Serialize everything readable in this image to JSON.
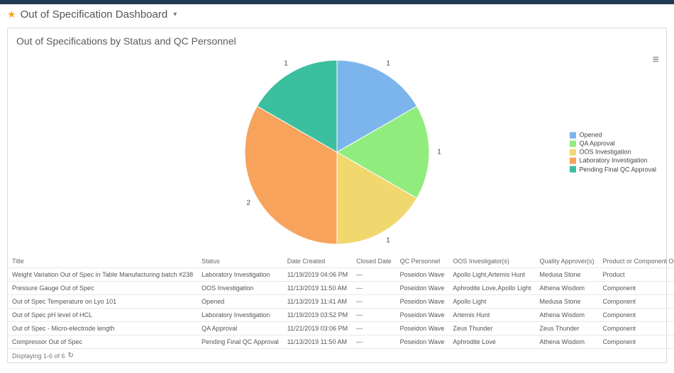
{
  "header": {
    "title": "Out of Specification Dashboard"
  },
  "panel": {
    "title": "Out of Specifications by Status and QC Personnel"
  },
  "chart": {
    "type": "pie",
    "background_color": "#ffffff",
    "radius": 130,
    "label_fontsize": 10,
    "slices": [
      {
        "label": "Opened",
        "value": 1,
        "color": "#7cb5ec"
      },
      {
        "label": "QA Approval",
        "value": 1,
        "color": "#90ed7d"
      },
      {
        "label": "OOS Investigation",
        "value": 1,
        "color": "#f0d86e"
      },
      {
        "label": "Laboratory Investigation",
        "value": 2,
        "color": "#f7a35c"
      },
      {
        "label": "Pending Final QC Approval",
        "value": 1,
        "color": "#3bbf9e"
      }
    ],
    "legend": {
      "position": "right",
      "fontsize": 9
    }
  },
  "table": {
    "columns": [
      "Title",
      "Status",
      "Date Created",
      "Closed Date",
      "QC Personnel",
      "OOS Investigator(s)",
      "Quality Approver(s)",
      "Product or Component Out of Spec?"
    ],
    "rows": [
      [
        "Weight Variation Out of Spec in Table Manufacturing batch #238",
        "Laboratory Investigation",
        "11/19/2019 04:06 PM",
        "---",
        "Poseidon Wave",
        "Apollo Light,Artemis Hunt",
        "Medusa Stone",
        "Product"
      ],
      [
        "Pressure Gauge Out of Spec",
        "OOS Investigation",
        "11/13/2019 11:50 AM",
        "---",
        "Poseidon Wave",
        "Aphrodite Love,Apollo Light",
        "Athena Wisdom",
        "Component"
      ],
      [
        "Out of Spec Temperature on Lyo 101",
        "Opened",
        "11/13/2019 11:41 AM",
        "---",
        "Poseidon Wave",
        "Apollo Light",
        "Medusa Stone",
        "Component"
      ],
      [
        "Out of Spec pH level of HCL",
        "Laboratory Investigation",
        "11/19/2019 03:52 PM",
        "---",
        "Poseidon Wave",
        "Artemis Hunt",
        "Athena Wisdom",
        "Component"
      ],
      [
        "Out of Spec - Micro-electrode length",
        "QA Approval",
        "11/21/2019 03:06 PM",
        "---",
        "Poseidon Wave",
        "Zeus Thunder",
        "Zeus Thunder",
        "Component"
      ],
      [
        "Compressor Out of Spec",
        "Pending Final QC Approval",
        "11/13/2019 11:50 AM",
        "---",
        "Poseidon Wave",
        "Aphrodite Love",
        "Athena Wisdom",
        "Component"
      ]
    ],
    "footer": "Displaying 1-6 of 6"
  }
}
